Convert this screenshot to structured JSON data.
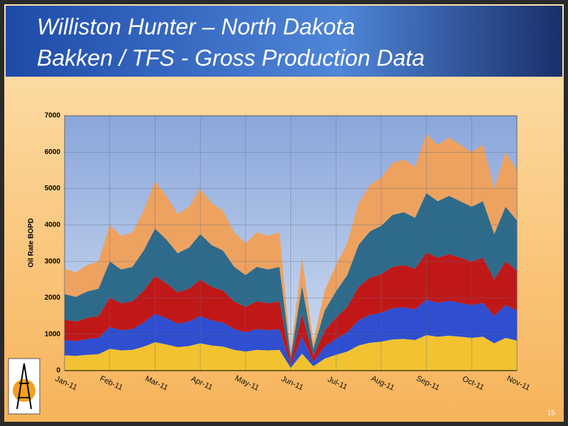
{
  "slide": {
    "title_lines": [
      "Williston Hunter – North Dakota",
      "Bakken / TFS - Gross Production Data"
    ],
    "page_number": 15
  },
  "chart_data": {
    "type": "stacked_area",
    "y_label": "Oil Rate BOPD",
    "categories": [
      "Jan-11",
      null,
      null,
      null,
      "Feb-11",
      null,
      null,
      null,
      "Mar-11",
      null,
      null,
      null,
      "Apr-11",
      null,
      null,
      null,
      "May-11",
      null,
      null,
      null,
      "Jun-11",
      null,
      null,
      null,
      "Jul-11",
      null,
      null,
      null,
      "Aug-11",
      null,
      null,
      null,
      "Sep-11",
      null,
      null,
      null,
      "Oct-11",
      null,
      null,
      null,
      "Nov-11"
    ],
    "series": [
      {
        "color": "#f2c230",
        "values": [
          420,
          405,
          435,
          450,
          600,
          555,
          570,
          660,
          780,
          720,
          645,
          675,
          750,
          690,
          660,
          570,
          525,
          570,
          555,
          570,
          75,
          465,
          120,
          330,
          435,
          525,
          690,
          765,
          795,
          855,
          870,
          840,
          975,
          930,
          960,
          930,
          900,
          930,
          750,
          900,
          825
        ]
      },
      {
        "color": "#2f4fd0",
        "values": [
          420,
          405,
          435,
          450,
          600,
          555,
          570,
          660,
          780,
          720,
          645,
          675,
          750,
          690,
          660,
          570,
          525,
          570,
          555,
          570,
          75,
          465,
          120,
          330,
          435,
          525,
          690,
          765,
          795,
          855,
          870,
          840,
          975,
          930,
          960,
          930,
          900,
          930,
          750,
          900,
          825
        ]
      },
      {
        "color": "#c01818",
        "values": [
          560,
          540,
          580,
          600,
          800,
          740,
          760,
          880,
          1040,
          960,
          860,
          900,
          1000,
          920,
          880,
          760,
          700,
          760,
          740,
          760,
          100,
          620,
          160,
          440,
          580,
          700,
          920,
          1020,
          1060,
          1140,
          1160,
          1120,
          1300,
          1240,
          1280,
          1240,
          1200,
          1240,
          1000,
          1200,
          1100
        ]
      },
      {
        "color": "#2e6b8a",
        "values": [
          700,
          675,
          725,
          750,
          1000,
          925,
          950,
          1100,
          1300,
          1200,
          1075,
          1125,
          1250,
          1150,
          1100,
          950,
          875,
          950,
          925,
          950,
          125,
          775,
          200,
          550,
          725,
          875,
          1150,
          1275,
          1325,
          1425,
          1450,
          1400,
          1625,
          1550,
          1600,
          1550,
          1500,
          1550,
          1250,
          1500,
          1375
        ]
      },
      {
        "color": "#eea260",
        "values": [
          700,
          675,
          725,
          750,
          1000,
          925,
          950,
          1100,
          1300,
          1200,
          1075,
          1125,
          1250,
          1150,
          1100,
          950,
          875,
          950,
          925,
          950,
          125,
          775,
          200,
          550,
          725,
          875,
          1150,
          1275,
          1325,
          1425,
          1450,
          1400,
          1625,
          1550,
          1600,
          1550,
          1500,
          1550,
          1250,
          1500,
          1375
        ]
      }
    ],
    "ylim": [
      0,
      7000
    ],
    "yticks": [
      0,
      1000,
      2000,
      3000,
      4000,
      5000,
      6000,
      7000
    ],
    "grid": true
  }
}
